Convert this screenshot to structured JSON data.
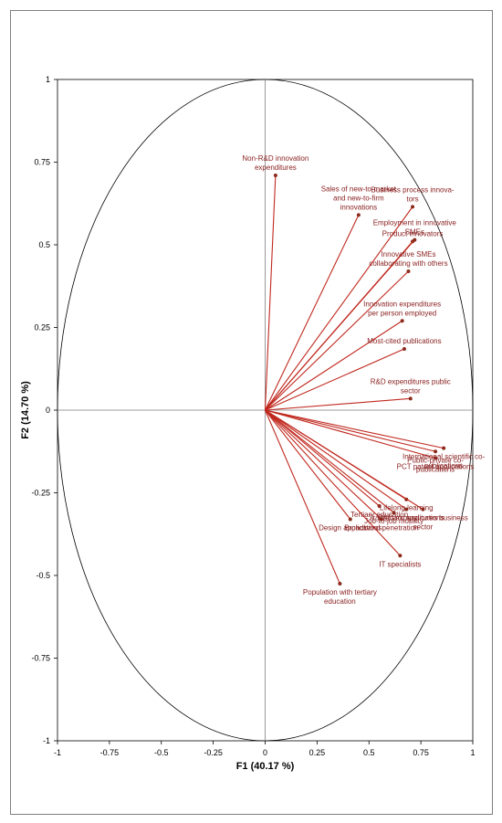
{
  "chart_data": {
    "type": "scatter",
    "subtype": "correlation-circle",
    "xlabel": "F1 (40.17 %)",
    "ylabel": "F2 (14.70 %)",
    "xlim": [
      -1,
      1
    ],
    "ylim": [
      -1,
      1
    ],
    "x_ticks": [
      "-1",
      "-0.75",
      "-0.5",
      "-0.25",
      "0",
      "0.25",
      "0.5",
      "0.75",
      "1"
    ],
    "y_ticks": [
      "1",
      "0.75",
      "0.5",
      "0.25",
      "0",
      "-0.25",
      "-0.5",
      "-0.75",
      "-1"
    ],
    "grid": false,
    "vector_color": "#c0281e",
    "label_color": "#8b2222",
    "variables": [
      {
        "lines": [
          "Non-R&D innovation",
          "expenditures"
        ],
        "x": 0.05,
        "y": 0.71
      },
      {
        "lines": [
          "Sales of new-to-market",
          "and new-to-firm",
          "innovations"
        ],
        "x": 0.45,
        "y": 0.59
      },
      {
        "lines": [
          "Business process innova-",
          "tors"
        ],
        "x": 0.71,
        "y": 0.615
      },
      {
        "lines": [
          "Product innovators"
        ],
        "x": 0.71,
        "y": 0.51
      },
      {
        "lines": [
          "Employment in innovative",
          "SMEs"
        ],
        "x": 0.72,
        "y": 0.515
      },
      {
        "lines": [
          "Innovative SMEs",
          "collaborating with others"
        ],
        "x": 0.69,
        "y": 0.42
      },
      {
        "lines": [
          "Innovation expenditures",
          "per person employed"
        ],
        "x": 0.66,
        "y": 0.27
      },
      {
        "lines": [
          "Most-cited publications"
        ],
        "x": 0.67,
        "y": 0.185
      },
      {
        "lines": [
          "R&D expenditures public",
          "sector"
        ],
        "x": 0.7,
        "y": 0.035
      },
      {
        "lines": [
          "International scientific co-",
          "publications"
        ],
        "x": 0.86,
        "y": -0.115
      },
      {
        "lines": [
          "Public-private co-",
          "publications"
        ],
        "x": 0.82,
        "y": -0.125
      },
      {
        "lines": [
          "PCT patent applications"
        ],
        "x": 0.82,
        "y": -0.145
      },
      {
        "lines": [
          "Lifelong learning"
        ],
        "x": 0.68,
        "y": -0.27
      },
      {
        "lines": [
          "R&D expenditures business",
          "sector"
        ],
        "x": 0.76,
        "y": -0.3
      },
      {
        "lines": [
          "Trademark applications"
        ],
        "x": 0.68,
        "y": -0.3
      },
      {
        "lines": [
          "Tertiary education"
        ],
        "x": 0.55,
        "y": -0.29
      },
      {
        "lines": [
          "Job-to-job mobility"
        ],
        "x": 0.62,
        "y": -0.31
      },
      {
        "lines": [
          "Broadband penetration"
        ],
        "x": 0.56,
        "y": -0.33
      },
      {
        "lines": [
          "Design applications"
        ],
        "x": 0.41,
        "y": -0.33
      },
      {
        "lines": [
          "IT specialists"
        ],
        "x": 0.65,
        "y": -0.44
      },
      {
        "lines": [
          "Population with tertiary",
          "education"
        ],
        "x": 0.36,
        "y": -0.525
      }
    ]
  }
}
